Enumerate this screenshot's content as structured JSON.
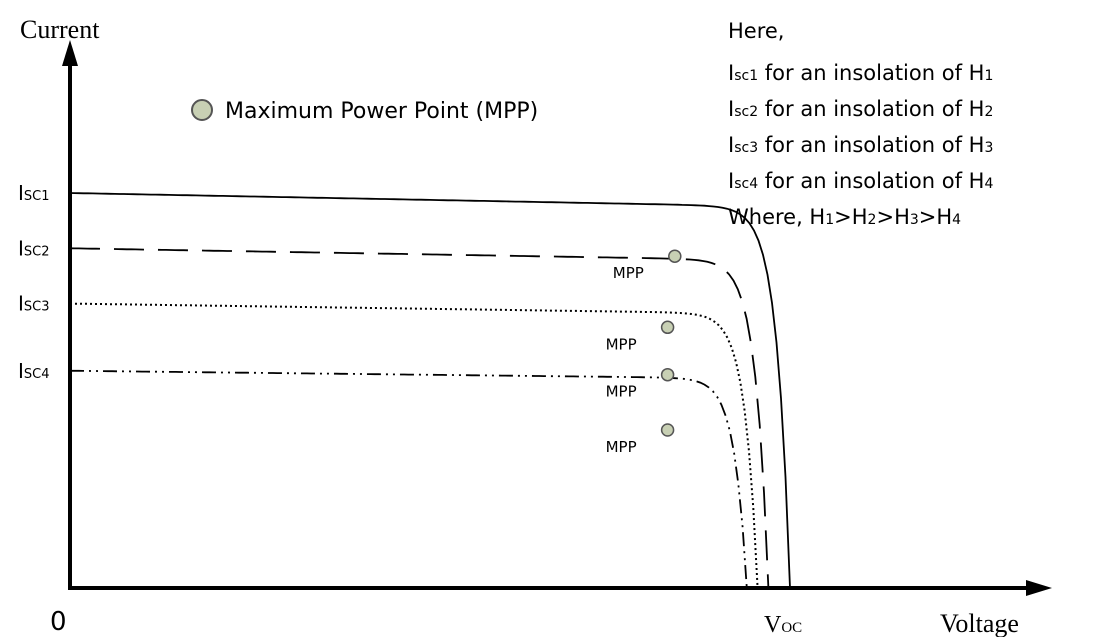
{
  "chart_data": {
    "type": "line",
    "xlabel": "Voltage",
    "ylabel": "Current",
    "origin_label": "0",
    "voc_label": {
      "main": "V",
      "sub": "OC"
    },
    "legend": {
      "marker": "circle",
      "label": "Maximum Power Point (MPP)"
    },
    "mpp_label": "MPP",
    "series": [
      {
        "label_main": "I",
        "label_sub": "SC1",
        "style": "solid",
        "isc": 1.0,
        "voc": 1.0,
        "mpp_v": 0.84,
        "mpp_i": 0.84
      },
      {
        "label_main": "I",
        "label_sub": "SC2",
        "style": "dashed",
        "isc": 0.86,
        "voc": 0.97,
        "mpp_v": 0.83,
        "mpp_i": 0.66
      },
      {
        "label_main": "I",
        "label_sub": "SC3",
        "style": "dotted",
        "isc": 0.72,
        "voc": 0.955,
        "mpp_v": 0.83,
        "mpp_i": 0.54
      },
      {
        "label_main": "I",
        "label_sub": "SC4",
        "style": "dash-dot-dot",
        "isc": 0.55,
        "voc": 0.94,
        "mpp_v": 0.83,
        "mpp_i": 0.4
      }
    ],
    "notes": {
      "heading": "Here,",
      "lines": [
        {
          "a": "I",
          "a_sub": "sc1",
          "text": " for an insolation of H",
          "b_sub": "1"
        },
        {
          "a": "I",
          "a_sub": "sc2",
          "text": " for an insolation of H",
          "b_sub": "2"
        },
        {
          "a": "I",
          "a_sub": "sc3",
          "text": " for an insolation of H",
          "b_sub": "3"
        },
        {
          "a": "I",
          "a_sub": "sc4",
          "text": " for an insolation of H",
          "b_sub": "4"
        }
      ],
      "where": {
        "prefix": "Where, H",
        "parts": [
          "1",
          ">H",
          "2",
          ">H",
          "3",
          ">H",
          "4"
        ]
      }
    },
    "colors": {
      "line": "#000000",
      "mpp_fill": "#c8d0b4",
      "mpp_stroke": "#555555"
    }
  }
}
